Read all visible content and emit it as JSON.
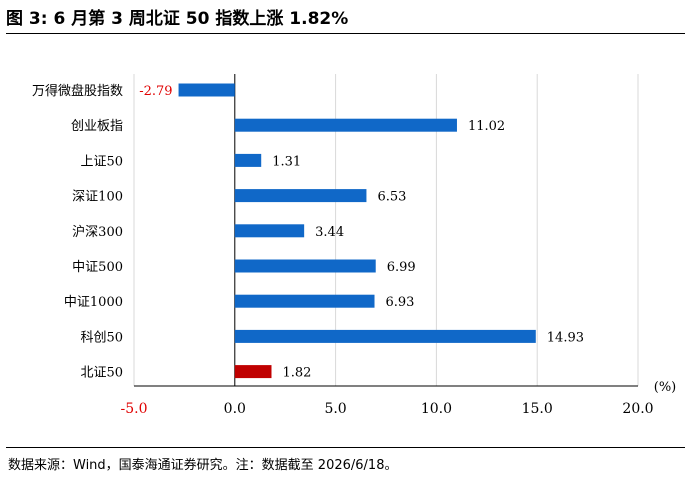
{
  "figure": {
    "title": "图 3:  6 月第 3 周北证 50 指数上涨 1.82%",
    "source": "数据来源：Wind，国泰海通证券研究。注：数据截至 2026/6/18。"
  },
  "chart_data": {
    "type": "bar",
    "orientation": "horizontal",
    "categories": [
      "万得微盘股指数",
      "创业板指",
      "上证50",
      "深证100",
      "沪深300",
      "中证500",
      "中证1000",
      "科创50",
      "北证50"
    ],
    "values": [
      -2.79,
      11.02,
      1.31,
      6.53,
      3.44,
      6.99,
      6.93,
      14.93,
      1.82
    ],
    "value_labels": [
      "-2.79",
      "11.02",
      "1.31",
      "6.53",
      "3.44",
      "6.99",
      "6.93",
      "14.93",
      "1.82"
    ],
    "xlim": [
      -5,
      20
    ],
    "xticks": [
      -5,
      0,
      5,
      10,
      15,
      20
    ],
    "xtick_labels": [
      "-5.0",
      "0.0",
      "5.0",
      "10.0",
      "15.0",
      "20.0"
    ],
    "unit_label": "(%)",
    "grid": "vertical",
    "colors": {
      "bar": "#1068c8",
      "highlight_bar": "#c00000",
      "negative_text": "#e00000",
      "grid": "#d9d9d9"
    },
    "highlight_category": "北证50"
  }
}
